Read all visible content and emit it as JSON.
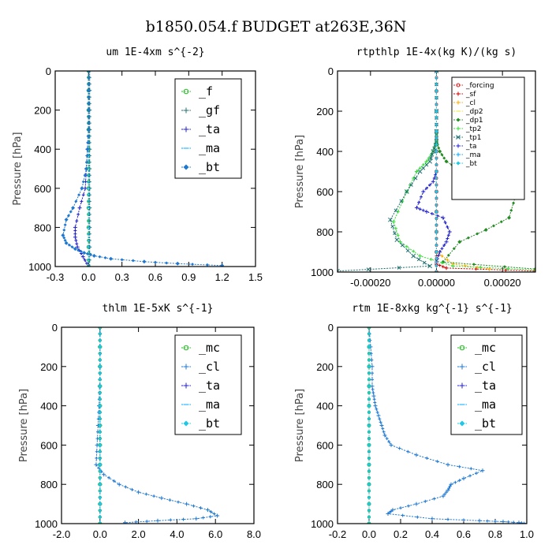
{
  "figure": {
    "title": "b1850.054.f  BUDGET at263E,36N"
  },
  "chart_data": [
    {
      "type": "line",
      "title": "um  1E-4xm s^{-2}",
      "ylabel": "Pressure [hPa]",
      "xlim": [
        -0.3,
        1.5
      ],
      "ylim": [
        1000,
        0
      ],
      "xticks": [
        "-0.3",
        "0.0",
        "0.3",
        "0.6",
        "0.9",
        "1.2",
        "1.5"
      ],
      "yticks": [
        "0",
        "200",
        "400",
        "600",
        "800",
        "1000"
      ],
      "legend": "top-right",
      "series": [
        {
          "name": "_f",
          "color": "#22bb22",
          "x": [
            0,
            0,
            0,
            0,
            0,
            0,
            0,
            0,
            0,
            0,
            0
          ],
          "y": [
            0,
            100,
            200,
            300,
            400,
            500,
            600,
            700,
            800,
            900,
            1000
          ]
        },
        {
          "name": "_gf",
          "color": "#207070",
          "x": [
            0.01,
            0.01,
            0.01,
            0.01,
            0.01,
            0.01,
            0.01,
            0.01,
            0.01,
            0.01,
            0.01
          ],
          "y": [
            0,
            100,
            200,
            300,
            400,
            500,
            600,
            700,
            800,
            900,
            1000
          ]
        },
        {
          "name": "_ta",
          "color": "#2020cc",
          "x": [
            0,
            0,
            0,
            0,
            -0.01,
            -0.02,
            -0.03,
            -0.08,
            -0.12,
            -0.12,
            -0.1,
            -0.05,
            0
          ],
          "y": [
            0,
            100,
            200,
            300,
            400,
            500,
            600,
            700,
            800,
            850,
            900,
            950,
            1000
          ]
        },
        {
          "name": "_ma",
          "color": "#00aaff",
          "x": [
            0,
            0,
            0,
            0,
            0,
            0,
            0,
            0,
            0,
            0,
            0
          ],
          "y": [
            0,
            100,
            200,
            300,
            400,
            500,
            600,
            700,
            800,
            900,
            1000
          ]
        },
        {
          "name": "_bt",
          "color": "#1e78d2",
          "x": [
            0,
            0,
            0,
            0,
            -0.01,
            -0.02,
            -0.06,
            -0.14,
            -0.2,
            -0.23,
            -0.2,
            -0.12,
            -0.04,
            0.05,
            0.2,
            0.5,
            0.8,
            1.2
          ],
          "y": [
            0,
            100,
            200,
            300,
            400,
            500,
            600,
            700,
            760,
            840,
            880,
            910,
            930,
            945,
            960,
            975,
            985,
            995
          ]
        }
      ]
    },
    {
      "type": "line",
      "title": "rtpthlp  1E-4x(kg K)/(kg s)",
      "ylabel": "Pressure [hPa]",
      "xlim": [
        -0.0003,
        0.0003
      ],
      "ylim": [
        1000,
        0
      ],
      "xticks": [
        "-0.00020",
        "0.00000",
        "0.00020"
      ],
      "xtick_values": [
        -0.0002,
        0,
        0.0002
      ],
      "yticks": [
        "0",
        "200",
        "400",
        "600",
        "800",
        "1000"
      ],
      "legend": "top-right",
      "series": [
        {
          "name": "_forcing",
          "color": "#dd2222",
          "x": [
            0,
            0,
            0,
            0,
            0,
            0,
            0,
            0,
            0,
            0,
            0
          ],
          "y": [
            0,
            100,
            200,
            300,
            400,
            500,
            600,
            700,
            800,
            900,
            1000
          ]
        },
        {
          "name": "_sf",
          "color": "#cc0000",
          "x": [
            0,
            0,
            0,
            0,
            0,
            0,
            0,
            0,
            0,
            0,
            0,
            3e-05,
            0.0003
          ],
          "y": [
            0,
            100,
            200,
            300,
            400,
            500,
            600,
            700,
            800,
            900,
            960,
            980,
            995
          ]
        },
        {
          "name": "_cl",
          "color": "#ffaa00",
          "x": [
            0,
            0,
            0,
            0,
            0,
            0,
            0,
            0,
            0,
            0,
            5e-05,
            0.00016
          ],
          "y": [
            0,
            100,
            200,
            300,
            400,
            500,
            600,
            700,
            800,
            900,
            960,
            985
          ]
        },
        {
          "name": "_dp2",
          "color": "#e8e830",
          "x": [
            0,
            0,
            0,
            0,
            0,
            0,
            0,
            0,
            0,
            0,
            0
          ],
          "y": [
            0,
            100,
            200,
            300,
            400,
            500,
            600,
            700,
            800,
            900,
            1000
          ]
        },
        {
          "name": "_dp1",
          "color": "#228b22",
          "x": [
            0,
            0,
            0,
            0,
            1e-05,
            3e-05,
            8e-05,
            0.00015,
            0.00024,
            0.00022,
            0.00015,
            7e-05,
            2e-05,
            0.0003
          ],
          "y": [
            0,
            200,
            300,
            350,
            400,
            450,
            500,
            550,
            620,
            730,
            790,
            850,
            950,
            985
          ]
        },
        {
          "name": "_tp2",
          "color": "#33dd33",
          "x": [
            0,
            0,
            0,
            0,
            -1e-05,
            -3e-05,
            -6e-05,
            -9e-05,
            -0.00013,
            -0.00011,
            -5e-05,
            5e-05,
            0.0003
          ],
          "y": [
            0,
            200,
            300,
            350,
            400,
            450,
            500,
            600,
            750,
            850,
            920,
            970,
            990
          ]
        },
        {
          "name": "_tp1",
          "color": "#207070",
          "x": [
            0,
            0,
            0,
            0,
            -1e-05,
            -2e-05,
            -5e-05,
            -9e-05,
            -0.00014,
            -0.00012,
            -7e-05,
            -2e-05,
            -0.0003
          ],
          "y": [
            0,
            200,
            300,
            350,
            400,
            450,
            500,
            600,
            740,
            840,
            920,
            970,
            995
          ]
        },
        {
          "name": "_ta",
          "color": "#2020cc",
          "x": [
            0,
            0,
            0,
            0,
            0,
            -1e-05,
            -4e-05,
            -6e-05,
            -3e-05,
            2e-05,
            4e-05,
            3e-05,
            1e-05,
            0
          ],
          "y": [
            0,
            200,
            300,
            400,
            500,
            550,
            600,
            680,
            700,
            730,
            800,
            850,
            900,
            950
          ]
        },
        {
          "name": "_ma",
          "color": "#00aaff",
          "x": [
            0,
            0,
            0,
            0,
            0,
            0,
            0,
            0,
            0,
            0,
            0
          ],
          "y": [
            0,
            100,
            200,
            300,
            400,
            500,
            600,
            700,
            800,
            900,
            1000
          ]
        },
        {
          "name": "_bt",
          "color": "#1ec8e6",
          "x": [
            0,
            0,
            0,
            0,
            0,
            0,
            0,
            0,
            0,
            0,
            0
          ],
          "y": [
            0,
            100,
            200,
            300,
            400,
            500,
            600,
            700,
            800,
            900,
            1000
          ]
        }
      ]
    },
    {
      "type": "line",
      "title": "thlm  1E-5xK s^{-1}",
      "ylabel": "Pressure [hPa]",
      "xlim": [
        -2.0,
        8.0
      ],
      "ylim": [
        1000,
        0
      ],
      "xticks": [
        "-2.0",
        "0.0",
        "2.0",
        "4.0",
        "6.0",
        "8.0"
      ],
      "yticks": [
        "0",
        "200",
        "400",
        "600",
        "800",
        "1000"
      ],
      "legend": "top-right",
      "series": [
        {
          "name": "_mc",
          "color": "#22bb22",
          "x": [
            0,
            0,
            0,
            0,
            0,
            0,
            0,
            0,
            0,
            0,
            0
          ],
          "y": [
            0,
            100,
            200,
            300,
            400,
            500,
            600,
            700,
            800,
            900,
            1000
          ]
        },
        {
          "name": "_cl",
          "color": "#1e78d2",
          "x": [
            0,
            0,
            0,
            -0.02,
            -0.05,
            -0.1,
            -0.15,
            -0.2,
            0.2,
            1.0,
            2.0,
            3.2,
            4.5,
            5.6,
            6.1,
            5.0,
            3.0,
            1.3
          ],
          "y": [
            0,
            100,
            200,
            300,
            400,
            500,
            600,
            700,
            750,
            800,
            840,
            870,
            900,
            930,
            960,
            975,
            985,
            995
          ]
        },
        {
          "name": "_ta",
          "color": "#2020cc",
          "x": [
            0,
            0,
            0,
            0,
            0,
            0,
            0,
            0,
            0,
            0,
            0
          ],
          "y": [
            0,
            100,
            200,
            300,
            400,
            500,
            600,
            700,
            800,
            900,
            1000
          ]
        },
        {
          "name": "_ma",
          "color": "#00aaff",
          "x": [
            0,
            0,
            0,
            0,
            0,
            0,
            0,
            0,
            0,
            0,
            0
          ],
          "y": [
            0,
            100,
            200,
            300,
            400,
            500,
            600,
            700,
            800,
            900,
            1000
          ]
        },
        {
          "name": "_bt",
          "color": "#1ec8e6",
          "x": [
            0,
            0,
            0,
            0,
            0,
            0,
            0,
            0,
            0,
            0,
            0
          ],
          "y": [
            0,
            100,
            200,
            300,
            400,
            500,
            600,
            700,
            800,
            900,
            1000
          ]
        }
      ]
    },
    {
      "type": "line",
      "title": "rtm  1E-8xkg kg^{-1} s^{-1}",
      "ylabel": "Pressure [hPa]",
      "xlim": [
        -0.2,
        1.0
      ],
      "ylim": [
        1000,
        0
      ],
      "xticks": [
        "-0.2",
        "0.0",
        "0.2",
        "0.4",
        "0.6",
        "0.8",
        "1.0"
      ],
      "yticks": [
        "0",
        "200",
        "400",
        "600",
        "800",
        "1000"
      ],
      "legend": "top-right",
      "series": [
        {
          "name": "_mc",
          "color": "#22bb22",
          "x": [
            0,
            0,
            0,
            0,
            0,
            0,
            0,
            0,
            0,
            0,
            0
          ],
          "y": [
            0,
            100,
            200,
            300,
            400,
            500,
            600,
            700,
            800,
            900,
            1000
          ]
        },
        {
          "name": "_cl",
          "color": "#1e78d2",
          "x": [
            0,
            0.01,
            0.02,
            0.02,
            0.03,
            0.04,
            0.06,
            0.08,
            0.1,
            0.14,
            0.3,
            0.5,
            0.72,
            0.6,
            0.52,
            0.5,
            0.47,
            0.3,
            0.15,
            0.12,
            0.4,
            0.7,
            0.85,
            0.95,
            1.0
          ],
          "y": [
            0,
            100,
            200,
            300,
            350,
            400,
            450,
            500,
            550,
            600,
            650,
            700,
            730,
            770,
            800,
            830,
            860,
            900,
            930,
            950,
            975,
            985,
            990,
            995,
            1000
          ]
        },
        {
          "name": "_ta",
          "color": "#2020cc",
          "x": [
            0,
            0,
            0,
            0,
            0,
            0,
            0,
            0,
            0,
            0,
            0
          ],
          "y": [
            0,
            100,
            200,
            300,
            400,
            500,
            600,
            700,
            800,
            900,
            1000
          ]
        },
        {
          "name": "_ma",
          "color": "#00aaff",
          "x": [
            0,
            0,
            0,
            0,
            0,
            0,
            0,
            0,
            0,
            0,
            0
          ],
          "y": [
            0,
            100,
            200,
            300,
            400,
            500,
            600,
            700,
            800,
            900,
            1000
          ]
        },
        {
          "name": "_bt",
          "color": "#1ec8e6",
          "x": [
            0,
            0,
            0,
            0,
            0,
            0,
            0,
            0,
            0,
            0,
            0
          ],
          "y": [
            0,
            100,
            200,
            300,
            400,
            500,
            600,
            700,
            800,
            900,
            1000
          ]
        }
      ]
    }
  ]
}
